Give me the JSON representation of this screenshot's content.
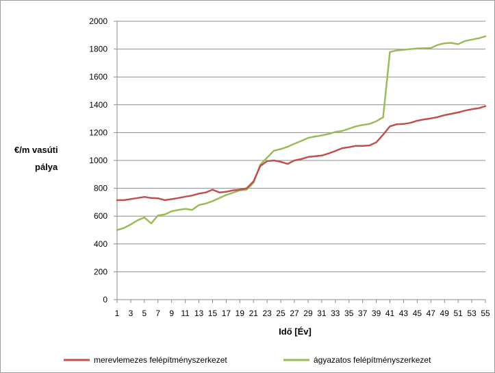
{
  "chart_data": {
    "type": "line",
    "xlabel": "Idő [Év]",
    "ylabel_lines": [
      "€/m vasúti",
      "pálya"
    ],
    "ylim": [
      0,
      2000
    ],
    "yticks": [
      0,
      200,
      400,
      600,
      800,
      1000,
      1200,
      1400,
      1600,
      1800,
      2000
    ],
    "xlim": [
      1,
      55
    ],
    "xtick_labels": [
      1,
      3,
      5,
      7,
      9,
      11,
      13,
      15,
      17,
      19,
      21,
      23,
      25,
      27,
      29,
      31,
      33,
      35,
      37,
      39,
      41,
      43,
      45,
      47,
      49,
      51,
      53,
      55
    ],
    "grid": "horizontal",
    "legend_position": "bottom",
    "x": [
      1,
      2,
      3,
      4,
      5,
      6,
      7,
      8,
      9,
      10,
      11,
      12,
      13,
      14,
      15,
      16,
      17,
      18,
      19,
      20,
      21,
      22,
      23,
      24,
      25,
      26,
      27,
      28,
      29,
      30,
      31,
      32,
      33,
      34,
      35,
      36,
      37,
      38,
      39,
      40,
      41,
      42,
      43,
      44,
      45,
      46,
      47,
      48,
      49,
      50,
      51,
      52,
      53,
      54,
      55
    ],
    "series": [
      {
        "name": "merevlemezes felépítményszerkezet",
        "color": "#c0504d",
        "values": [
          715,
          715,
          722,
          730,
          738,
          730,
          728,
          715,
          722,
          730,
          740,
          748,
          762,
          770,
          790,
          770,
          775,
          785,
          790,
          800,
          850,
          960,
          995,
          1000,
          990,
          975,
          1000,
          1010,
          1025,
          1030,
          1035,
          1050,
          1068,
          1088,
          1095,
          1105,
          1105,
          1108,
          1130,
          1185,
          1245,
          1260,
          1262,
          1270,
          1285,
          1295,
          1302,
          1312,
          1325,
          1335,
          1345,
          1358,
          1368,
          1375,
          1390
        ]
      },
      {
        "name": "ágyazatos felépítményszerkezet",
        "color": "#9bbb59",
        "values": [
          500,
          515,
          540,
          570,
          590,
          548,
          605,
          612,
          635,
          645,
          652,
          645,
          680,
          690,
          708,
          730,
          752,
          768,
          785,
          790,
          840,
          970,
          1020,
          1070,
          1082,
          1098,
          1120,
          1140,
          1162,
          1172,
          1180,
          1190,
          1205,
          1212,
          1228,
          1245,
          1255,
          1262,
          1282,
          1310,
          1780,
          1790,
          1795,
          1800,
          1805,
          1806,
          1808,
          1830,
          1842,
          1845,
          1835,
          1858,
          1868,
          1878,
          1892
        ]
      }
    ]
  }
}
